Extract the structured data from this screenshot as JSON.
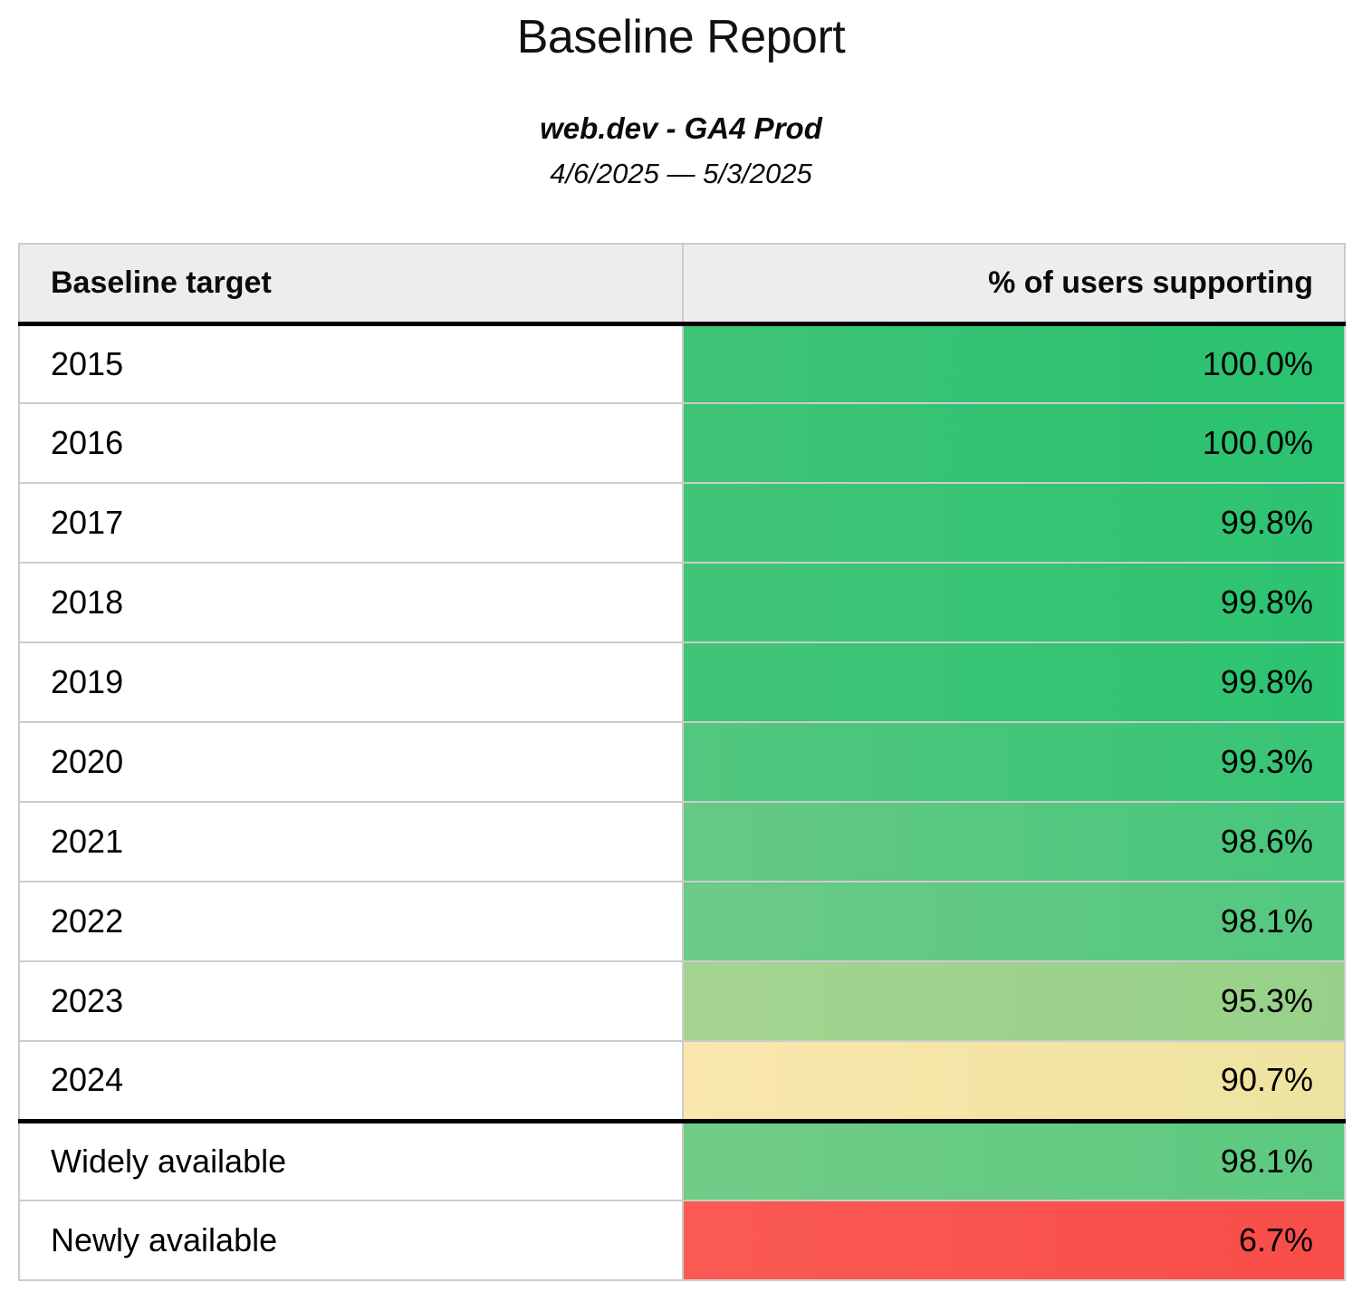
{
  "page": {
    "title": "Baseline Report",
    "subtitle": "web.dev - GA4 Prod",
    "date_range": "4/6/2025 — 5/3/2025"
  },
  "table": {
    "headers": {
      "target": "Baseline target",
      "support": "% of users supporting"
    },
    "rows": [
      {
        "label": "2015",
        "value": "100.0%",
        "color_left": "#3fc377",
        "color_right": "#29c26f",
        "section_end": false
      },
      {
        "label": "2016",
        "value": "100.0%",
        "color_left": "#3fc377",
        "color_right": "#29c26f",
        "section_end": false
      },
      {
        "label": "2017",
        "value": "99.8%",
        "color_left": "#42c478",
        "color_right": "#2cc371",
        "section_end": false
      },
      {
        "label": "2018",
        "value": "99.8%",
        "color_left": "#42c478",
        "color_right": "#2cc371",
        "section_end": false
      },
      {
        "label": "2019",
        "value": "99.8%",
        "color_left": "#42c478",
        "color_right": "#2cc371",
        "section_end": false
      },
      {
        "label": "2020",
        "value": "99.3%",
        "color_left": "#53c77f",
        "color_right": "#36c475",
        "section_end": false
      },
      {
        "label": "2021",
        "value": "98.6%",
        "color_left": "#66c984",
        "color_right": "#46c67c",
        "section_end": false
      },
      {
        "label": "2022",
        "value": "98.1%",
        "color_left": "#6cca87",
        "color_right": "#53c87f",
        "section_end": false
      },
      {
        "label": "2023",
        "value": "95.3%",
        "color_left": "#a5d490",
        "color_right": "#97d189",
        "section_end": false
      },
      {
        "label": "2024",
        "value": "90.7%",
        "color_left": "#f9e7ad",
        "color_right": "#eee3a0",
        "section_end": true
      },
      {
        "label": "Widely available",
        "value": "98.1%",
        "color_left": "#71cc86",
        "color_right": "#5cc980",
        "section_end": false
      },
      {
        "label": "Newly available",
        "value": "6.7%",
        "color_left": "#fb5a54",
        "color_right": "#f84d49",
        "section_end": false
      }
    ]
  },
  "colors": {
    "header_background": "#ededed",
    "grid_border": "#cccccc",
    "section_divider": "#000000",
    "text": "#0b0b0b"
  },
  "chart_data": {
    "type": "table",
    "title": "Baseline Report",
    "subtitle": "web.dev - GA4 Prod",
    "date_range": "4/6/2025 — 5/3/2025",
    "columns": [
      "Baseline target",
      "% of users supporting"
    ],
    "categories": [
      "2015",
      "2016",
      "2017",
      "2018",
      "2019",
      "2020",
      "2021",
      "2022",
      "2023",
      "2024",
      "Widely available",
      "Newly available"
    ],
    "values": [
      100.0,
      100.0,
      99.8,
      99.8,
      99.8,
      99.3,
      98.6,
      98.1,
      95.3,
      90.7,
      98.1,
      6.7
    ],
    "value_unit": "%",
    "color_scale": "green (high) to yellow (mid) to red (low)"
  }
}
